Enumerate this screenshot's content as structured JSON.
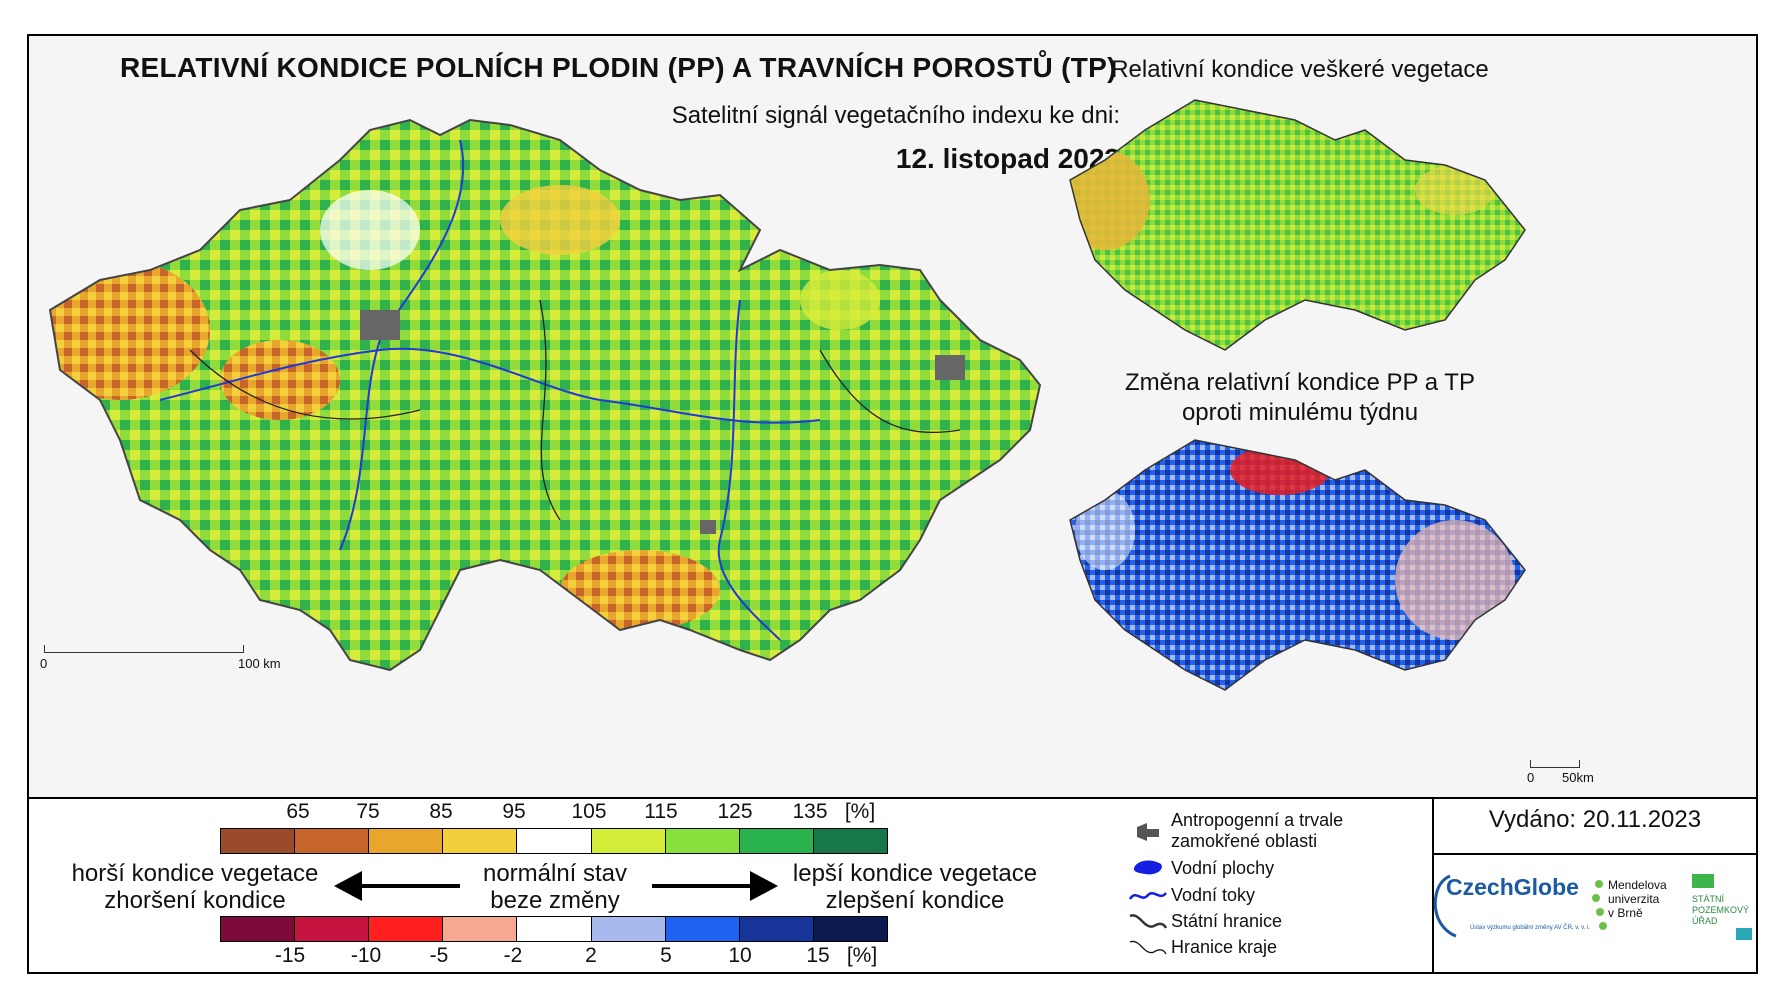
{
  "title": "RELATIVNÍ KONDICE POLNÍCH PLODIN (PP) A TRAVNÍCH POROSTŮ (TP)",
  "subtitle": "Satelitní signál vegetačního indexu ke dni:",
  "date": "12. listopad 2023",
  "main_map": {
    "scale_labels": [
      "0",
      "100 km"
    ]
  },
  "inset_vegetation": {
    "title": "Relativní kondice veškeré vegetace"
  },
  "inset_change": {
    "title_line1": "Změna relativní kondice PP a TP",
    "title_line2": "oproti minulému týdnu",
    "scale_labels": [
      "0",
      "50km"
    ]
  },
  "legend": {
    "condition_ticks": [
      "65",
      "75",
      "85",
      "95",
      "105",
      "115",
      "125",
      "135",
      "[%]"
    ],
    "condition_colors": [
      "#9b4a2b",
      "#c8652a",
      "#e8a62c",
      "#f3cf3e",
      "#ffffff",
      "#d4ec3a",
      "#87e03c",
      "#2ab24d",
      "#17764a"
    ],
    "change_ticks": [
      "-15",
      "-10",
      "-5",
      "-2",
      "2",
      "5",
      "10",
      "15",
      "[%]"
    ],
    "change_colors": [
      "#7d0a3a",
      "#c4143f",
      "#ff1f1f",
      "#f7a892",
      "#ffffff",
      "#a8b9ee",
      "#1f62f2",
      "#17349a",
      "#0b1a4f"
    ],
    "worse_line1": "horší kondice vegetace",
    "worse_line2": "zhoršení kondice",
    "normal_line1": "normální stav",
    "normal_line2": "beze změny",
    "better_line1": "lepší kondice vegetace",
    "better_line2": "zlepšení kondice"
  },
  "symbols": {
    "anthropogenic_line1": "Antropogenní a trvale",
    "anthropogenic_line2": "zamokřené oblasti",
    "water_bodies": "Vodní plochy",
    "rivers": "Vodní toky",
    "state_border": "Státní hranice",
    "region_border": "Hranice kraje"
  },
  "issued": "Vydáno: 20.11.2023",
  "logos": {
    "czechglobe": "CzechGlobe",
    "czechglobe_sub": "Ústav výzkumu globální změny AV ČR, v. v. i.",
    "mendel_1": "Mendelova",
    "mendel_2": "univerzita",
    "mendel_3": "v Brně",
    "spu_1": "STÁTNÍ",
    "spu_2": "POZEMKOVÝ",
    "spu_3": "ÚŘAD"
  }
}
